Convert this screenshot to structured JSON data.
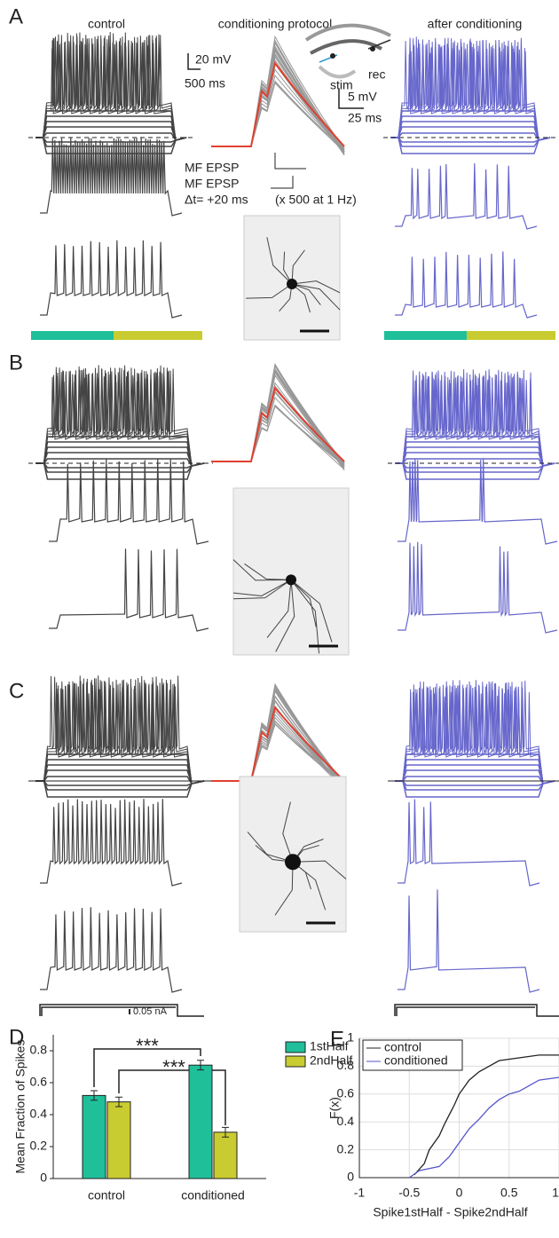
{
  "panels": {
    "A": {
      "label": "A",
      "col_titles": [
        "control",
        "conditioning protocol",
        "after conditioning"
      ],
      "scale_voltage": "20 mV",
      "scale_time": "500 ms",
      "epsp_voltage": "5 mV",
      "epsp_time": "25 ms",
      "rec": "rec",
      "stim": "stim",
      "protocol": [
        "MF EPSP",
        "MF EPSP",
        "Δt= +20 ms",
        "(x 500 at 1 Hz)"
      ]
    },
    "B": {
      "label": "B"
    },
    "C": {
      "label": "C",
      "current_scale": "0.05 nA"
    },
    "D": {
      "label": "D"
    },
    "E": {
      "label": "E"
    }
  },
  "chart_data": [
    {
      "type": "bar",
      "ylabel": "Mean Fraction of Spikes",
      "categories": [
        "control",
        "conditioned"
      ],
      "series": [
        {
          "name": "1stHalf",
          "color": "#1fbf9a",
          "values": [
            0.52,
            0.71
          ],
          "errors": [
            0.03,
            0.03
          ]
        },
        {
          "name": "2ndHalf",
          "color": "#c9cc30",
          "values": [
            0.48,
            0.29
          ],
          "errors": [
            0.03,
            0.03
          ]
        }
      ],
      "ylim": [
        0,
        0.9
      ],
      "yticks": [
        0,
        0.2,
        0.4,
        0.6,
        0.8
      ],
      "annotations": [
        "***",
        "***"
      ],
      "legend": "upper right"
    },
    {
      "type": "line",
      "ylabel": "F(x)",
      "xlabel": "Spike1stHalf - Spike2ndHalf",
      "xlim": [
        -1,
        1
      ],
      "ylim": [
        0,
        1
      ],
      "xticks": [
        -1,
        -0.5,
        0,
        0.5,
        1
      ],
      "yticks": [
        0,
        0.2,
        0.4,
        0.6,
        0.8,
        1
      ],
      "grid": true,
      "legend": "upper left",
      "series": [
        {
          "name": "control",
          "color": "#222222",
          "x": [
            -0.45,
            -0.35,
            -0.3,
            -0.2,
            -0.15,
            -0.1,
            -0.05,
            0,
            0.05,
            0.1,
            0.2,
            0.3,
            0.4,
            0.6,
            0.8,
            1
          ],
          "values": [
            0.02,
            0.1,
            0.2,
            0.3,
            0.38,
            0.45,
            0.52,
            0.6,
            0.65,
            0.7,
            0.76,
            0.8,
            0.84,
            0.86,
            0.88,
            0.88
          ]
        },
        {
          "name": "conditioned",
          "color": "#5555cc",
          "x": [
            -0.5,
            -0.4,
            -0.2,
            -0.1,
            0,
            0.1,
            0.2,
            0.3,
            0.4,
            0.5,
            0.6,
            0.7,
            0.8,
            1
          ],
          "values": [
            0,
            0.05,
            0.08,
            0.15,
            0.25,
            0.35,
            0.42,
            0.5,
            0.56,
            0.6,
            0.62,
            0.66,
            0.7,
            0.72
          ]
        }
      ]
    }
  ]
}
